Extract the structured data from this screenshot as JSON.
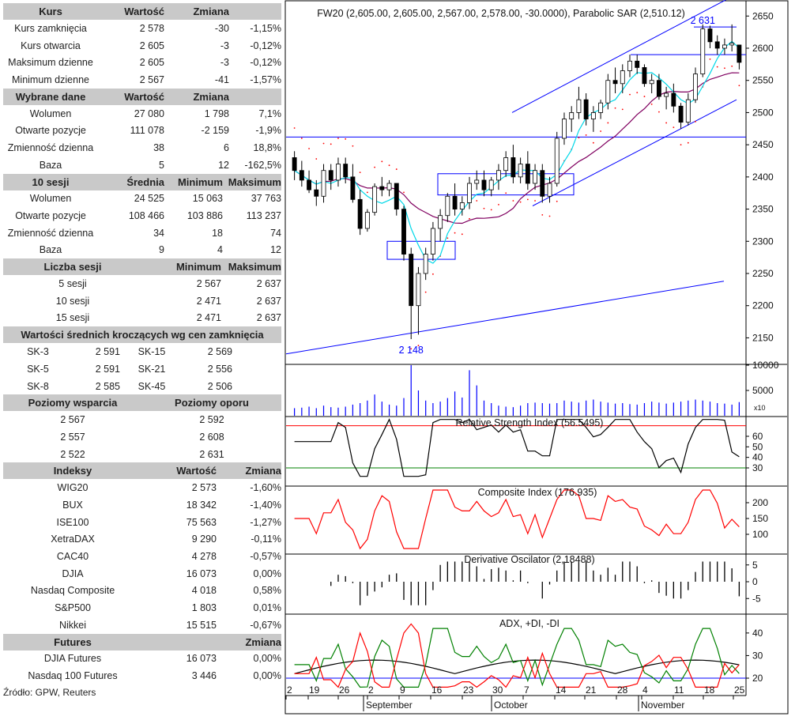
{
  "tables": [
    {
      "widths": [
        120,
        84,
        82,
        66
      ],
      "headerAlign": [
        "c",
        "r",
        "r",
        "r"
      ],
      "rowAlign": [
        "c",
        "r",
        "r",
        "r"
      ],
      "header": [
        "Kurs",
        "Wartość",
        "Zmiana",
        ""
      ],
      "rows": [
        [
          "Kurs zamknięcia",
          "2 578",
          "-30",
          "-1,15%"
        ],
        [
          "Kurs otwarcia",
          "2 605",
          "-3",
          "-0,12%"
        ],
        [
          "Maksimum dzienne",
          "2 605",
          "-3",
          "-0,12%"
        ],
        [
          "Minimum dzienne",
          "2 567",
          "-41",
          "-1,57%"
        ]
      ]
    },
    {
      "widths": [
        120,
        84,
        82,
        66
      ],
      "headerAlign": [
        "c",
        "r",
        "r",
        "r"
      ],
      "rowAlign": [
        "c",
        "r",
        "r",
        "r"
      ],
      "header": [
        "Wybrane dane",
        "Wartość",
        "Zmiana",
        ""
      ],
      "rows": [
        [
          "Wolumen",
          "27 080",
          "1 798",
          "7,1%"
        ],
        [
          "Otwarte pozycje",
          "111 078",
          "-2 159",
          "-1,9%"
        ],
        [
          "Zmienność dzienna",
          "38",
          "6",
          "18,8%"
        ],
        [
          "Baza",
          "5",
          "12",
          "-162,5%"
        ]
      ]
    },
    {
      "widths": [
        120,
        84,
        74,
        74
      ],
      "headerAlign": [
        "c",
        "r",
        "r",
        "r"
      ],
      "rowAlign": [
        "c",
        "r",
        "r",
        "r"
      ],
      "header": [
        "10 sesji",
        "Średnia",
        "Minimum",
        "Maksimum"
      ],
      "rows": [
        [
          "Wolumen",
          "24 525",
          "15 063",
          "37 763"
        ],
        [
          "Otwarte pozycje",
          "108 466",
          "103 886",
          "113 237"
        ],
        [
          "Zmienność dzienna",
          "34",
          "18",
          "74"
        ],
        [
          "Baza",
          "9",
          "4",
          "12"
        ]
      ]
    },
    {
      "widths": [
        176,
        100,
        0,
        76
      ],
      "headerAlign": [
        "c",
        "r",
        "r",
        "r"
      ],
      "rowAlign": [
        "c",
        "r",
        "r",
        "r"
      ],
      "header": [
        "Liczba sesji",
        "Minimum",
        "",
        "Maksimum"
      ],
      "rows": [
        [
          "5 sesji",
          "2 567",
          "",
          "2 637"
        ],
        [
          "10 sesji",
          "2 471",
          "",
          "2 637"
        ],
        [
          "15 sesji",
          "2 471",
          "",
          "2 637"
        ]
      ]
    },
    {
      "widths": [
        352
      ],
      "headerAlign": [
        "c"
      ],
      "rowAlign": [
        "c"
      ],
      "header": [
        "Wartości średnich kroczących wg cen zamknięcia"
      ],
      "rows": []
    },
    {
      "widths": [
        88,
        60,
        80,
        62,
        62
      ],
      "headerAlign": [
        "c",
        "r",
        "c",
        "r",
        "r"
      ],
      "rowAlign": [
        "c",
        "r",
        "c",
        "r",
        "r"
      ],
      "header": null,
      "rows": [
        [
          "SK-3",
          "2 591",
          "SK-15",
          "2 569",
          ""
        ],
        [
          "SK-5",
          "2 591",
          "SK-21",
          "2 556",
          ""
        ],
        [
          "SK-8",
          "2 585",
          "SK-45",
          "2 506",
          ""
        ]
      ]
    },
    {
      "widths": [
        176,
        176
      ],
      "headerAlign": [
        "c",
        "c"
      ],
      "rowAlign": [
        "c",
        "c"
      ],
      "header": [
        "Poziomy wsparcia",
        "Poziomy oporu"
      ],
      "rows": [
        [
          "2 567",
          "2 592"
        ],
        [
          "2 557",
          "2 608"
        ],
        [
          "2 522",
          "2 631"
        ]
      ]
    },
    {
      "widths": [
        176,
        94,
        82
      ],
      "headerAlign": [
        "c",
        "r",
        "r"
      ],
      "rowAlign": [
        "c",
        "r",
        "r"
      ],
      "header": [
        "Indeksy",
        "Wartość",
        "Zmiana"
      ],
      "rows": [
        [
          "WIG20",
          "2 573",
          "-1,60%"
        ],
        [
          "BUX",
          "18 342",
          "-1,40%"
        ],
        [
          "ISE100",
          "75 563",
          "-1,27%"
        ],
        [
          "XetraDAX",
          "9 290",
          "-0,11%"
        ],
        [
          "CAC40",
          "4 278",
          "-0,57%"
        ],
        [
          "DJIA",
          "16 073",
          "0,00%"
        ],
        [
          "Nasdaq Composite",
          "4 018",
          "0,58%"
        ],
        [
          "S&P500",
          "1 803",
          "0,01%"
        ],
        [
          "Nikkei",
          "15 515",
          "-0,67%"
        ]
      ]
    },
    {
      "widths": [
        176,
        94,
        82
      ],
      "headerAlign": [
        "c",
        "r",
        "r"
      ],
      "rowAlign": [
        "c",
        "r",
        "r"
      ],
      "header": [
        "Futures",
        "",
        "Zmiana"
      ],
      "rows": [
        [
          "DJIA Futures",
          "16 073",
          "0,00%"
        ],
        [
          "Nasdaq 100 Futures",
          "3 446",
          "0,00%"
        ]
      ]
    }
  ],
  "source": "Źródło: GPW, Reuters",
  "colors": {
    "header_bg": "#c9c9c9",
    "up": "#ffffff",
    "down": "#000000",
    "trend": "#0000ff",
    "sma_fast": "#00d8e8",
    "sma_slow": "#800060",
    "sar": "#ff0000",
    "rsi": "#000000",
    "composite": "#ff0000",
    "adx": "#000000",
    "plus_di": "#008000",
    "minus_di": "#ff0000"
  },
  "chart_data": {
    "type": "candlestick",
    "title": "FW20 (2,605.00, 2,605.00, 2,567.00, 2,578.00, -30.0000), Parabolic SAR (2,510.12)",
    "x_axis": {
      "ticks": [
        "2",
        "19",
        "26",
        "2",
        "9",
        "16",
        "23",
        "30",
        "7",
        "14",
        "21",
        "28",
        "4",
        "11",
        "18",
        "25"
      ],
      "months": [
        "September",
        "October",
        "November"
      ]
    },
    "price": {
      "ylim": [
        2110,
        2670
      ],
      "ticks": [
        2150,
        2200,
        2250,
        2300,
        2350,
        2400,
        2450,
        2500,
        2550,
        2600,
        2650
      ],
      "annotations": [
        {
          "text": "2 631",
          "value": 2631
        },
        {
          "text": "2 148",
          "value": 2148
        }
      ],
      "candles": [
        [
          2430,
          2440,
          2395,
          2410
        ],
        [
          2410,
          2425,
          2385,
          2395
        ],
        [
          2395,
          2410,
          2375,
          2380
        ],
        [
          2380,
          2395,
          2355,
          2370
        ],
        [
          2370,
          2420,
          2360,
          2410
        ],
        [
          2410,
          2420,
          2380,
          2395
        ],
        [
          2395,
          2430,
          2385,
          2420
        ],
        [
          2420,
          2430,
          2390,
          2400
        ],
        [
          2400,
          2420,
          2360,
          2365
        ],
        [
          2365,
          2380,
          2310,
          2320
        ],
        [
          2320,
          2350,
          2315,
          2345
        ],
        [
          2345,
          2390,
          2340,
          2385
        ],
        [
          2385,
          2400,
          2370,
          2380
        ],
        [
          2380,
          2395,
          2370,
          2390
        ],
        [
          2390,
          2390,
          2340,
          2350
        ],
        [
          2350,
          2355,
          2270,
          2280
        ],
        [
          2280,
          2290,
          2148,
          2200
        ],
        [
          2200,
          2260,
          2155,
          2250
        ],
        [
          2250,
          2290,
          2240,
          2280
        ],
        [
          2280,
          2330,
          2270,
          2320
        ],
        [
          2320,
          2350,
          2300,
          2340
        ],
        [
          2340,
          2375,
          2330,
          2370
        ],
        [
          2370,
          2390,
          2340,
          2350
        ],
        [
          2350,
          2370,
          2340,
          2360
        ],
        [
          2360,
          2400,
          2350,
          2390
        ],
        [
          2390,
          2410,
          2380,
          2395
        ],
        [
          2395,
          2410,
          2370,
          2380
        ],
        [
          2380,
          2400,
          2370,
          2395
        ],
        [
          2395,
          2420,
          2380,
          2410
        ],
        [
          2410,
          2440,
          2400,
          2430
        ],
        [
          2430,
          2450,
          2390,
          2400
        ],
        [
          2400,
          2430,
          2390,
          2420
        ],
        [
          2420,
          2440,
          2380,
          2390
        ],
        [
          2390,
          2420,
          2380,
          2410
        ],
        [
          2410,
          2420,
          2360,
          2370
        ],
        [
          2370,
          2400,
          2360,
          2390
        ],
        [
          2390,
          2470,
          2385,
          2460
        ],
        [
          2460,
          2500,
          2450,
          2490
        ],
        [
          2490,
          2510,
          2470,
          2500
        ],
        [
          2500,
          2540,
          2490,
          2520
        ],
        [
          2520,
          2530,
          2480,
          2490
        ],
        [
          2490,
          2510,
          2470,
          2500
        ],
        [
          2500,
          2520,
          2490,
          2515
        ],
        [
          2515,
          2560,
          2505,
          2550
        ],
        [
          2550,
          2570,
          2530,
          2545
        ],
        [
          2545,
          2575,
          2530,
          2565
        ],
        [
          2565,
          2590,
          2555,
          2580
        ],
        [
          2580,
          2590,
          2560,
          2570
        ],
        [
          2570,
          2575,
          2540,
          2545
        ],
        [
          2545,
          2560,
          2530,
          2550
        ],
        [
          2550,
          2560,
          2520,
          2525
        ],
        [
          2525,
          2540,
          2505,
          2530
        ],
        [
          2530,
          2545,
          2500,
          2510
        ],
        [
          2510,
          2515,
          2475,
          2485
        ],
        [
          2485,
          2530,
          2480,
          2520
        ],
        [
          2520,
          2570,
          2515,
          2560
        ],
        [
          2560,
          2637,
          2555,
          2630
        ],
        [
          2630,
          2635,
          2600,
          2610
        ],
        [
          2610,
          2620,
          2590,
          2600
        ],
        [
          2600,
          2615,
          2590,
          2605
        ],
        [
          2605,
          2637,
          2595,
          2608
        ],
        [
          2605,
          2605,
          2567,
          2578
        ]
      ]
    },
    "volume": {
      "ylim": [
        0,
        10000
      ],
      "ticks": [
        5000,
        10000
      ],
      "multiplier": "x10",
      "values": [
        1500,
        1600,
        1800,
        1500,
        2000,
        1700,
        1600,
        1800,
        2200,
        2500,
        3000,
        4200,
        2800,
        2200,
        2000,
        3500,
        10000,
        5000,
        3000,
        2500,
        2800,
        3500,
        4800,
        3600,
        9000,
        6000,
        3000,
        2500,
        2000,
        1800,
        1700,
        2000,
        2500,
        2600,
        2500,
        2400,
        2500,
        3000,
        2800,
        2600,
        3000,
        3200,
        2800,
        2600,
        2400,
        2500,
        2300,
        2200,
        2500,
        2800,
        2600,
        2400,
        2600,
        2800,
        3000,
        3200,
        3000,
        2800,
        2500,
        2400,
        2200,
        2700
      ]
    },
    "rsi": {
      "title": "Relative Strength Index (56.5495)",
      "value": 56.5495,
      "ylim": [
        15,
        78
      ],
      "ticks": [
        30,
        40,
        50,
        60
      ],
      "levels": [
        30,
        70
      ]
    },
    "composite": {
      "title": "Composite Index (176.935)",
      "value": 176.935,
      "ylim": [
        40,
        250
      ],
      "ticks": [
        100,
        150,
        200
      ]
    },
    "derivative": {
      "title": "Derivative Oscilator (2,18488)",
      "value": 2.18488,
      "ylim": [
        -8,
        8
      ],
      "ticks": [
        -5,
        0,
        5
      ]
    },
    "adx": {
      "title": "ADX, +DI, -DI",
      "ylim": [
        13,
        48
      ],
      "ticks": [
        20,
        30,
        40
      ],
      "level": 20
    }
  }
}
